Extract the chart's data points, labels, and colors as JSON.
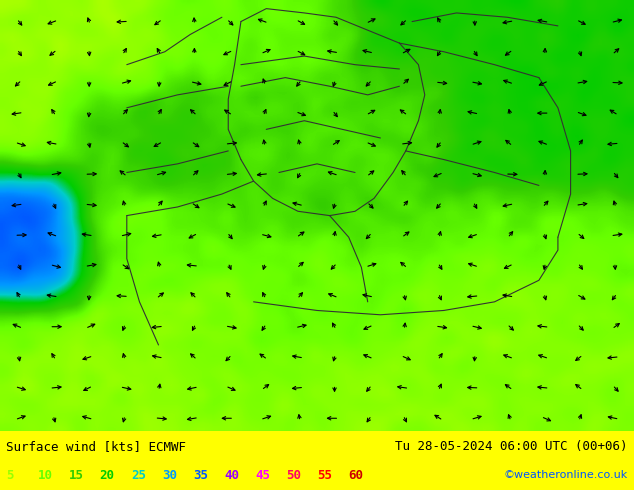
{
  "title_left": "Surface wind [kts] ECMWF",
  "title_right": "Tu 28-05-2024 06:00 UTC (00+06)",
  "credit": "©weatheronline.co.uk",
  "legend_values": [
    5,
    10,
    15,
    20,
    25,
    30,
    35,
    40,
    45,
    50,
    55,
    60
  ],
  "legend_colors": [
    "#99ff00",
    "#66ff00",
    "#33cc00",
    "#00cc00",
    "#00cccc",
    "#0099ff",
    "#0055ff",
    "#9900ff",
    "#ff00ff",
    "#ff0066",
    "#ff0000",
    "#cc0000"
  ],
  "colorscale_bounds": [
    0,
    5,
    10,
    15,
    20,
    25,
    30,
    35,
    40,
    45,
    50,
    55,
    60
  ],
  "colorscale_colors": [
    "#ffff00",
    "#ccff00",
    "#99ff00",
    "#66ff00",
    "#33cc00",
    "#00cc00",
    "#00cccc",
    "#0099ff",
    "#0055ff",
    "#9900ff",
    "#ff00ff",
    "#ff0066",
    "#ff0000"
  ],
  "bg_color": "#ffff00",
  "map_bg": "#ffffff",
  "figsize": [
    6.34,
    4.9
  ],
  "dpi": 100
}
